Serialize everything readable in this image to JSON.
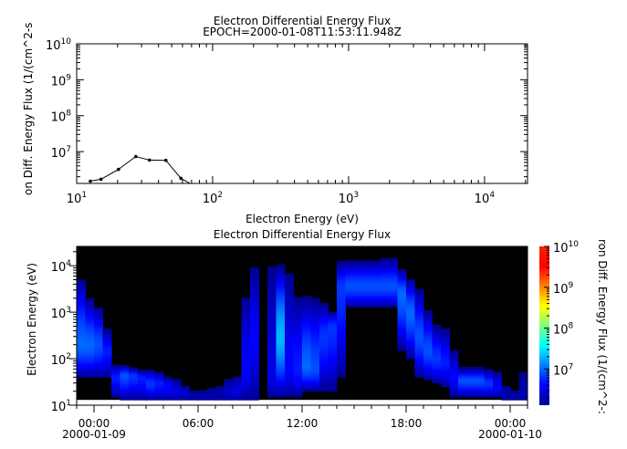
{
  "chart_data": [
    {
      "type": "line",
      "title": "Electron Differential Energy Flux",
      "subtitle": "EPOCH=2000-01-08T11:53:11.948Z",
      "xlabel": "Electron Energy (eV)",
      "ylabel": "on Diff. Energy Flux (1/(cm^2-s",
      "xscale": "log",
      "yscale": "log",
      "xlim": [
        10,
        20700
      ],
      "ylim": [
        1300000,
        10000000000
      ],
      "x_tick_exponents": [
        1,
        2,
        3,
        4
      ],
      "y_tick_exponents": [
        7,
        8,
        9,
        10
      ],
      "line_color": "#000000",
      "marker": "dot",
      "x": [
        12.6,
        15.1,
        20.3,
        27.2,
        34.3,
        45.3,
        58.5,
        77
      ],
      "y": [
        1500000,
        1700000,
        3200000,
        7300000,
        5800000,
        5700000,
        1800000,
        1000000
      ]
    },
    {
      "type": "heatmap",
      "title": "Electron Differential Energy Flux",
      "ylabel": "Electron Energy (eV)",
      "colorbar_label": "ron Diff. Energy Flux (1/(cm^2-:",
      "colormap": "jet",
      "no_data_color": "#000000",
      "yscale": "log",
      "ylim": [
        10,
        26000
      ],
      "y_tick_exponents": [
        1,
        2,
        3,
        4
      ],
      "color_range": [
        1300000,
        10000000000
      ],
      "colorbar_tick_exponents": [
        7,
        8,
        9,
        10
      ],
      "xlim": [
        "2000-01-08T23:00",
        "2000-01-10T01:00"
      ],
      "x_ticks": [
        {
          "time": "2000-01-09T00:00",
          "label": "00:00",
          "date": "2000-01-09"
        },
        {
          "time": "2000-01-09T06:00",
          "label": "06:00",
          "date": ""
        },
        {
          "time": "2000-01-09T12:00",
          "label": "12:00",
          "date": ""
        },
        {
          "time": "2000-01-09T18:00",
          "label": "18:00",
          "date": ""
        },
        {
          "time": "2000-01-10T00:00",
          "label": "00:00",
          "date": "2000-01-10"
        }
      ],
      "bin_minutes": 30,
      "bins_start": "2000-01-08T23:00",
      "bin_fields": [
        "energy_low_eV",
        "energy_high_eV",
        "peak_energy_eV",
        "peak_log10_flux"
      ],
      "bins": [
        [
          40,
          5000,
          200,
          7.0
        ],
        [
          40,
          1800,
          200,
          7.0
        ],
        [
          40,
          1200,
          200,
          6.9
        ],
        [
          40,
          400,
          150,
          6.7
        ],
        [
          15,
          70,
          40,
          6.7
        ],
        [
          13,
          70,
          45,
          6.9
        ],
        [
          13,
          60,
          45,
          6.8
        ],
        [
          13,
          55,
          40,
          6.7
        ],
        [
          13,
          55,
          30,
          6.8
        ],
        [
          13,
          50,
          30,
          6.7
        ],
        [
          13,
          40,
          25,
          6.6
        ],
        [
          13,
          35,
          20,
          6.5
        ],
        [
          13,
          25,
          18,
          6.4
        ],
        [
          13,
          20,
          16,
          6.3
        ],
        [
          13,
          20,
          16,
          6.3
        ],
        [
          13,
          22,
          16,
          6.3
        ],
        [
          13,
          25,
          16,
          6.3
        ],
        [
          13,
          35,
          18,
          6.4
        ],
        [
          13,
          40,
          20,
          6.5
        ],
        [
          13,
          2000,
          60,
          6.6
        ],
        [
          13,
          9000,
          300,
          6.6
        ],
        null,
        [
          15,
          9000,
          40,
          6.5
        ],
        [
          15,
          10000,
          300,
          7.3
        ],
        [
          15,
          6000,
          60,
          6.6
        ],
        [
          15,
          2000,
          60,
          6.7
        ],
        [
          20,
          2000,
          70,
          7.0
        ],
        [
          20,
          1800,
          60,
          6.9
        ],
        [
          20,
          1500,
          300,
          6.8
        ],
        [
          20,
          1000,
          500,
          6.8
        ],
        [
          40,
          12000,
          3600,
          6.8
        ],
        [
          1300,
          12000,
          3600,
          6.9
        ],
        [
          1300,
          12000,
          3600,
          6.9
        ],
        [
          1300,
          12000,
          3600,
          6.9
        ],
        [
          1300,
          12000,
          3600,
          6.9
        ],
        [
          1300,
          13000,
          3600,
          6.9
        ],
        [
          1300,
          13000,
          3600,
          6.9
        ],
        [
          150,
          8000,
          2500,
          7.0
        ],
        [
          100,
          5000,
          1000,
          7.0
        ],
        [
          40,
          3000,
          300,
          6.9
        ],
        [
          35,
          1000,
          150,
          6.9
        ],
        [
          30,
          500,
          100,
          6.8
        ],
        [
          25,
          400,
          80,
          6.7
        ],
        [
          15,
          150,
          40,
          6.6
        ],
        [
          15,
          60,
          35,
          6.9
        ],
        [
          15,
          60,
          35,
          6.9
        ],
        [
          15,
          60,
          35,
          6.9
        ],
        [
          15,
          55,
          30,
          6.8
        ],
        [
          15,
          50,
          25,
          6.6
        ],
        [
          13,
          25,
          18,
          6.3
        ],
        [
          13,
          20,
          16,
          6.3
        ],
        [
          13,
          50,
          18,
          6.3
        ]
      ]
    }
  ]
}
